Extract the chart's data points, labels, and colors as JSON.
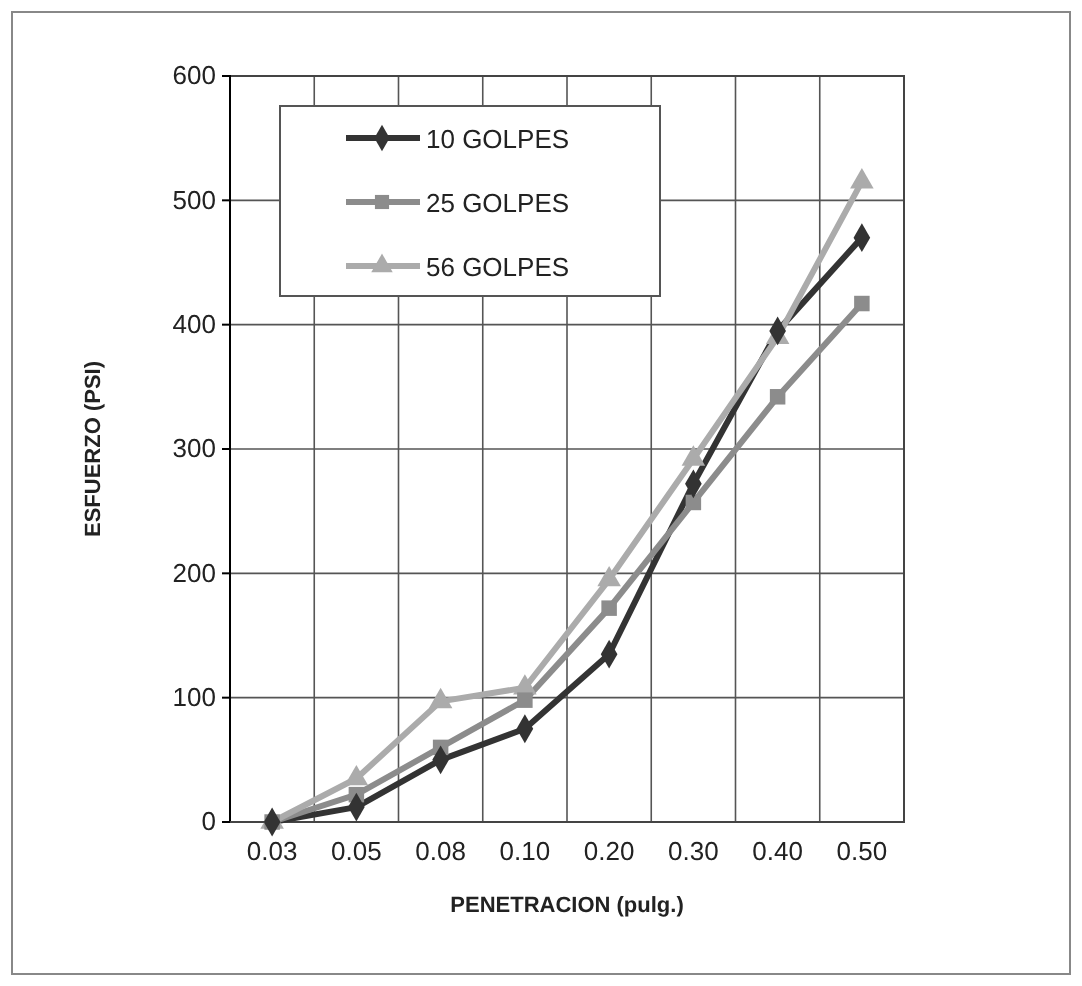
{
  "chart_data": {
    "type": "line",
    "xlabel": "PENETRACION (pulg.)",
    "ylabel": "ESFUERZO (PSI)",
    "categories": [
      "0.03",
      "0.05",
      "0.08",
      "0.10",
      "0.20",
      "0.30",
      "0.40",
      "0.50"
    ],
    "ylim": [
      0,
      600
    ],
    "yticks": [
      0,
      100,
      200,
      300,
      400,
      500,
      600
    ],
    "grid": true,
    "legend": "top left",
    "series": [
      {
        "name": "10 GOLPES",
        "color": "#333333",
        "marker": "diamond",
        "values": [
          0,
          12,
          50,
          75,
          135,
          272,
          395,
          470
        ]
      },
      {
        "name": "25 GOLPES",
        "color": "#8c8c8c",
        "marker": "square",
        "values": [
          0,
          22,
          60,
          98,
          172,
          257,
          342,
          417
        ]
      },
      {
        "name": "56 GOLPES",
        "color": "#ababab",
        "marker": "triangle",
        "values": [
          0,
          35,
          97,
          108,
          195,
          292,
          390,
          515
        ]
      }
    ]
  }
}
